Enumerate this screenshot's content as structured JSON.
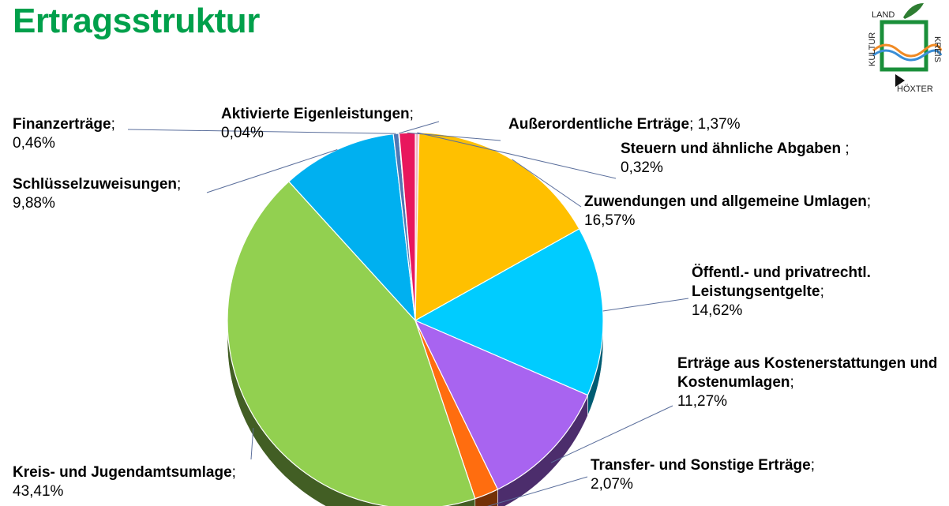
{
  "title": "Ertragsstruktur",
  "logo": {
    "top": "LAND",
    "left": "KULTUR",
    "right": "KREIS",
    "bottom": "HÖXTER"
  },
  "chart_data": {
    "type": "pie",
    "title": "Ertragsstruktur",
    "style": "3d",
    "slices": [
      {
        "name": "Steuern und ähnliche Abgaben",
        "value": 0.32,
        "value_label": "0,32%",
        "color": "#f2b8c6"
      },
      {
        "name": "Zuwendungen und allgemeine Umlagen",
        "value": 16.57,
        "value_label": "16,57%",
        "color": "#ffc000"
      },
      {
        "name": "Öffentl.- und privatrechtl. Leistungsentgelte",
        "value": 14.62,
        "value_label": "14,62%",
        "color": "#00ccff"
      },
      {
        "name": "Erträge aus Kostenerstattungen und Kostenumlagen",
        "value": 11.27,
        "value_label": "11,27%",
        "color": "#a864f0"
      },
      {
        "name": "Transfer- und Sonstige Erträge",
        "value": 2.07,
        "value_label": "2,07%",
        "color": "#ff6d0f"
      },
      {
        "name": "Kreis- und Jugendamtsumlage",
        "value": 43.41,
        "value_label": "43,41%",
        "color": "#92d050"
      },
      {
        "name": "Schlüsselzuweisungen",
        "value": 9.88,
        "value_label": "9,88%",
        "color": "#00b0f0"
      },
      {
        "name": "Finanzerträge",
        "value": 0.46,
        "value_label": "0,46%",
        "color": "#4e78b5"
      },
      {
        "name": "Aktivierte Eigenleistungen",
        "value": 0.04,
        "value_label": "0,04%",
        "color": "#7f9fd0"
      },
      {
        "name": "Außerordentliche Erträge",
        "value": 1.37,
        "value_label": "1,37%",
        "color": "#e8175d"
      }
    ]
  }
}
